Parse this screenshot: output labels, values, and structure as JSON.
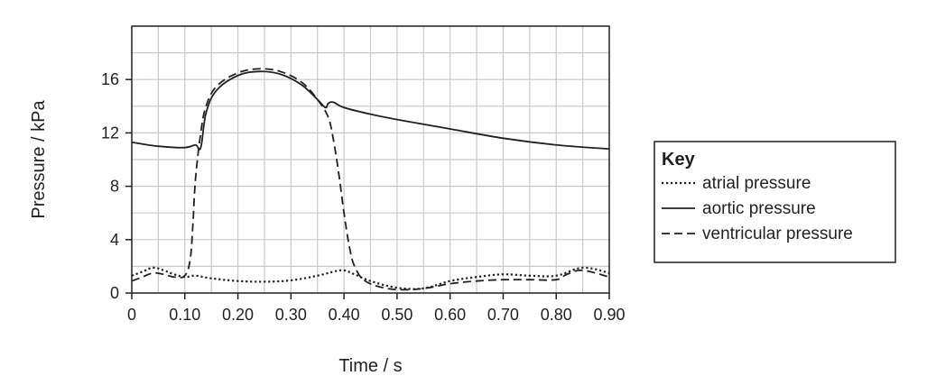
{
  "chart_data": {
    "type": "line",
    "xlabel": "Time / s",
    "ylabel": "Pressure / kPa",
    "xlim": [
      0,
      0.9
    ],
    "ylim": [
      0,
      20
    ],
    "x_ticks": [
      "0",
      "0.10",
      "0.20",
      "0.30",
      "0.40",
      "0.50",
      "0.60",
      "0.70",
      "0.80",
      "0.90"
    ],
    "x_tick_values": [
      0,
      0.1,
      0.2,
      0.3,
      0.4,
      0.5,
      0.6,
      0.7,
      0.8,
      0.9
    ],
    "y_ticks": [
      "0",
      "4",
      "8",
      "12",
      "16"
    ],
    "y_tick_values": [
      0,
      4,
      8,
      12,
      16
    ],
    "grid": true,
    "legend_placement": "right",
    "legend_title": "Key",
    "series": [
      {
        "name": "atrial pressure",
        "dash": "dotted",
        "color": "#231f20",
        "x": [
          0.0,
          0.02,
          0.04,
          0.06,
          0.08,
          0.1,
          0.12,
          0.15,
          0.2,
          0.25,
          0.3,
          0.35,
          0.38,
          0.4,
          0.42,
          0.45,
          0.5,
          0.55,
          0.6,
          0.65,
          0.7,
          0.75,
          0.8,
          0.85,
          0.9
        ],
        "y": [
          1.3,
          1.6,
          1.9,
          1.7,
          1.4,
          1.2,
          1.3,
          1.1,
          0.9,
          0.85,
          0.95,
          1.3,
          1.6,
          1.7,
          1.4,
          0.9,
          0.4,
          0.35,
          0.9,
          1.2,
          1.4,
          1.3,
          1.3,
          1.9,
          1.5
        ]
      },
      {
        "name": "aortic pressure",
        "dash": "solid",
        "color": "#231f20",
        "x": [
          0.0,
          0.05,
          0.1,
          0.12,
          0.13,
          0.14,
          0.16,
          0.2,
          0.24,
          0.28,
          0.32,
          0.35,
          0.365,
          0.37,
          0.38,
          0.4,
          0.45,
          0.5,
          0.6,
          0.7,
          0.8,
          0.9
        ],
        "y": [
          11.3,
          11.0,
          10.9,
          11.1,
          10.9,
          13.5,
          15.2,
          16.3,
          16.6,
          16.4,
          15.6,
          14.5,
          13.9,
          14.2,
          14.3,
          13.9,
          13.4,
          13.0,
          12.3,
          11.6,
          11.1,
          10.8
        ]
      },
      {
        "name": "ventricular pressure",
        "dash": "dashed",
        "color": "#231f20",
        "x": [
          0.0,
          0.02,
          0.04,
          0.06,
          0.08,
          0.1,
          0.11,
          0.115,
          0.12,
          0.13,
          0.14,
          0.16,
          0.2,
          0.24,
          0.28,
          0.32,
          0.35,
          0.37,
          0.38,
          0.39,
          0.4,
          0.41,
          0.42,
          0.44,
          0.48,
          0.52,
          0.56,
          0.6,
          0.65,
          0.7,
          0.75,
          0.8,
          0.82,
          0.85,
          0.9
        ],
        "y": [
          0.9,
          1.2,
          1.5,
          1.4,
          1.2,
          1.3,
          2.5,
          5.0,
          8.5,
          12.0,
          14.0,
          15.5,
          16.5,
          16.8,
          16.6,
          15.8,
          14.5,
          13.2,
          11.5,
          9.0,
          6.0,
          3.5,
          2.0,
          0.9,
          0.35,
          0.25,
          0.4,
          0.7,
          0.9,
          1.0,
          1.0,
          1.0,
          1.4,
          1.7,
          1.2
        ]
      }
    ]
  }
}
